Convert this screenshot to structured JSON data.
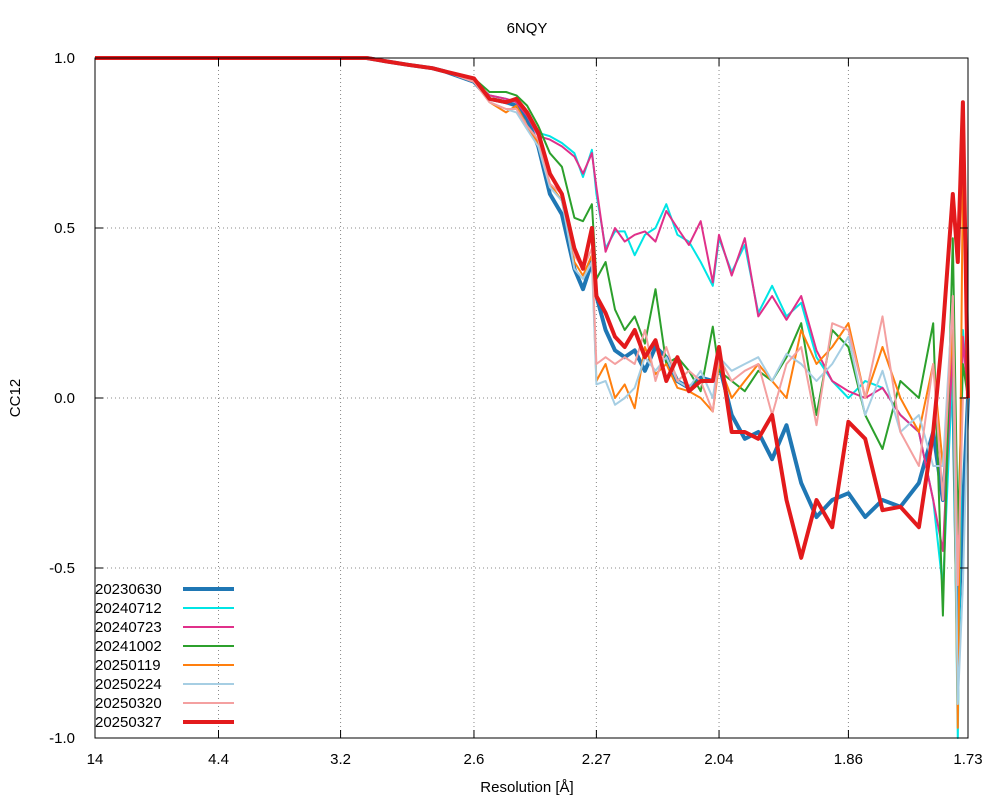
{
  "chart_data": {
    "type": "line",
    "title": "6NQY",
    "xlabel": "Resolution [Å]",
    "ylabel": "CC12",
    "x_scale": "reciprocal-squared",
    "xticks": [
      14,
      4.4,
      3.2,
      2.6,
      2.27,
      2.04,
      1.86,
      1.73
    ],
    "xtick_labels": [
      "14",
      "4.4",
      "3.2",
      "2.6",
      "2.27",
      "2.04",
      "1.86",
      "1.73"
    ],
    "yticks": [
      -1.0,
      -0.5,
      0.0,
      0.5,
      1.0
    ],
    "ytick_labels": [
      "-1.0",
      "-0.5",
      "0.0",
      "0.5",
      "1.0"
    ],
    "xlim": [
      14,
      1.73
    ],
    "ylim": [
      -1.0,
      1.0
    ],
    "grid": true,
    "legend_position": "bottom-left",
    "series": [
      {
        "name": "20230630",
        "color": "#1f77b4",
        "width": 4,
        "x": [
          14,
          9,
          6,
          4.8,
          4.4,
          3.9,
          3.5,
          3.2,
          3.05,
          2.95,
          2.85,
          2.75,
          2.7,
          2.6,
          2.55,
          2.5,
          2.47,
          2.44,
          2.41,
          2.38,
          2.35,
          2.32,
          2.3,
          2.28,
          2.27,
          2.25,
          2.23,
          2.21,
          2.19,
          2.17,
          2.15,
          2.13,
          2.11,
          2.09,
          2.07,
          2.05,
          2.04,
          2.02,
          2.0,
          1.98,
          1.96,
          1.94,
          1.92,
          1.9,
          1.88,
          1.86,
          1.84,
          1.82,
          1.8,
          1.78,
          1.765,
          1.755,
          1.745,
          1.74,
          1.735,
          1.73
        ],
        "y": [
          1.0,
          1.0,
          1.0,
          1.0,
          1.0,
          1.0,
          1.0,
          1.0,
          1.0,
          0.99,
          0.98,
          0.97,
          0.96,
          0.93,
          0.88,
          0.87,
          0.86,
          0.82,
          0.74,
          0.6,
          0.54,
          0.38,
          0.32,
          0.4,
          0.3,
          0.2,
          0.14,
          0.12,
          0.14,
          0.08,
          0.15,
          0.12,
          0.05,
          0.03,
          0.06,
          0.05,
          0.1,
          -0.05,
          -0.12,
          -0.1,
          -0.18,
          -0.08,
          -0.25,
          -0.35,
          -0.3,
          -0.28,
          -0.35,
          -0.3,
          -0.32,
          -0.25,
          -0.1,
          -0.3,
          0.1,
          -0.7,
          -0.33,
          0.0
        ]
      },
      {
        "name": "20240712",
        "color": "#00e5e5",
        "width": 2,
        "x": [
          14,
          9,
          6,
          4.8,
          4.4,
          3.9,
          3.5,
          3.2,
          3.05,
          2.95,
          2.85,
          2.75,
          2.7,
          2.6,
          2.55,
          2.5,
          2.47,
          2.44,
          2.41,
          2.38,
          2.35,
          2.32,
          2.3,
          2.28,
          2.27,
          2.25,
          2.23,
          2.21,
          2.19,
          2.17,
          2.15,
          2.13,
          2.11,
          2.09,
          2.07,
          2.05,
          2.04,
          2.02,
          2.0,
          1.98,
          1.96,
          1.94,
          1.92,
          1.9,
          1.88,
          1.86,
          1.84,
          1.82,
          1.8,
          1.78,
          1.765,
          1.755,
          1.745,
          1.74,
          1.735,
          1.73
        ],
        "y": [
          1.0,
          1.0,
          1.0,
          1.0,
          1.0,
          1.0,
          1.0,
          1.0,
          1.0,
          0.99,
          0.98,
          0.97,
          0.96,
          0.93,
          0.89,
          0.88,
          0.87,
          0.84,
          0.78,
          0.77,
          0.75,
          0.72,
          0.65,
          0.73,
          0.6,
          0.44,
          0.49,
          0.49,
          0.42,
          0.48,
          0.5,
          0.57,
          0.48,
          0.46,
          0.4,
          0.33,
          0.47,
          0.37,
          0.45,
          0.25,
          0.33,
          0.24,
          0.28,
          0.12,
          0.05,
          0.0,
          0.05,
          0.03,
          -0.05,
          -0.1,
          -0.3,
          -0.56,
          0.1,
          -1.0,
          0.2,
          0.0
        ]
      },
      {
        "name": "20240723",
        "color": "#e0308a",
        "width": 2,
        "x": [
          14,
          9,
          6,
          4.8,
          4.4,
          3.9,
          3.5,
          3.2,
          3.05,
          2.95,
          2.85,
          2.75,
          2.7,
          2.6,
          2.55,
          2.5,
          2.47,
          2.44,
          2.41,
          2.38,
          2.35,
          2.32,
          2.3,
          2.28,
          2.27,
          2.25,
          2.23,
          2.21,
          2.19,
          2.17,
          2.15,
          2.13,
          2.11,
          2.09,
          2.07,
          2.05,
          2.04,
          2.02,
          2.0,
          1.98,
          1.96,
          1.94,
          1.92,
          1.9,
          1.88,
          1.86,
          1.84,
          1.82,
          1.8,
          1.78,
          1.765,
          1.755,
          1.745,
          1.74,
          1.735,
          1.73
        ],
        "y": [
          1.0,
          1.0,
          1.0,
          1.0,
          1.0,
          1.0,
          1.0,
          1.0,
          1.0,
          0.99,
          0.98,
          0.97,
          0.96,
          0.93,
          0.89,
          0.88,
          0.87,
          0.83,
          0.77,
          0.76,
          0.74,
          0.71,
          0.66,
          0.72,
          0.62,
          0.43,
          0.5,
          0.46,
          0.48,
          0.49,
          0.46,
          0.55,
          0.5,
          0.45,
          0.52,
          0.34,
          0.48,
          0.36,
          0.47,
          0.24,
          0.3,
          0.23,
          0.3,
          0.14,
          0.05,
          0.02,
          0.0,
          0.03,
          -0.05,
          -0.1,
          -0.3,
          -0.45,
          0.15,
          -0.5,
          0.18,
          0.0
        ]
      },
      {
        "name": "20241002",
        "color": "#2ca02c",
        "width": 2,
        "x": [
          14,
          9,
          6,
          4.8,
          4.4,
          3.9,
          3.5,
          3.2,
          3.05,
          2.95,
          2.85,
          2.75,
          2.7,
          2.6,
          2.55,
          2.5,
          2.47,
          2.44,
          2.41,
          2.38,
          2.35,
          2.32,
          2.3,
          2.28,
          2.27,
          2.25,
          2.23,
          2.21,
          2.19,
          2.17,
          2.15,
          2.13,
          2.11,
          2.09,
          2.07,
          2.05,
          2.04,
          2.02,
          2.0,
          1.98,
          1.96,
          1.94,
          1.92,
          1.9,
          1.88,
          1.86,
          1.84,
          1.82,
          1.8,
          1.78,
          1.765,
          1.755,
          1.745,
          1.74,
          1.735,
          1.73
        ],
        "y": [
          1.0,
          1.0,
          1.0,
          1.0,
          1.0,
          1.0,
          1.0,
          1.0,
          1.0,
          0.99,
          0.98,
          0.97,
          0.96,
          0.94,
          0.9,
          0.9,
          0.89,
          0.86,
          0.8,
          0.72,
          0.68,
          0.53,
          0.52,
          0.57,
          0.35,
          0.4,
          0.26,
          0.2,
          0.24,
          0.16,
          0.32,
          0.1,
          0.12,
          0.08,
          0.02,
          0.21,
          0.08,
          0.05,
          0.02,
          0.08,
          0.05,
          0.12,
          0.22,
          -0.05,
          0.2,
          0.15,
          -0.05,
          -0.15,
          0.05,
          0.0,
          0.22,
          -0.64,
          0.47,
          -0.4,
          0.1,
          0.0
        ]
      },
      {
        "name": "20250119",
        "color": "#ff7f0e",
        "width": 2,
        "x": [
          14,
          9,
          6,
          4.8,
          4.4,
          3.9,
          3.5,
          3.2,
          3.05,
          2.95,
          2.85,
          2.75,
          2.7,
          2.6,
          2.55,
          2.5,
          2.47,
          2.44,
          2.41,
          2.38,
          2.35,
          2.32,
          2.3,
          2.28,
          2.27,
          2.25,
          2.23,
          2.21,
          2.19,
          2.17,
          2.15,
          2.13,
          2.11,
          2.09,
          2.07,
          2.05,
          2.04,
          2.02,
          2.0,
          1.98,
          1.96,
          1.94,
          1.92,
          1.9,
          1.88,
          1.86,
          1.84,
          1.82,
          1.8,
          1.78,
          1.765,
          1.755,
          1.745,
          1.74,
          1.735,
          1.73
        ],
        "y": [
          1.0,
          1.0,
          1.0,
          1.0,
          1.0,
          1.0,
          1.0,
          1.0,
          1.0,
          0.99,
          0.98,
          0.97,
          0.96,
          0.93,
          0.87,
          0.84,
          0.86,
          0.8,
          0.75,
          0.63,
          0.58,
          0.4,
          0.36,
          0.42,
          0.05,
          0.1,
          0.0,
          0.04,
          -0.03,
          0.15,
          0.07,
          0.1,
          0.03,
          0.02,
          0.0,
          -0.04,
          0.1,
          0.0,
          0.05,
          0.1,
          0.05,
          0.0,
          0.2,
          0.1,
          0.15,
          0.22,
          0.0,
          0.15,
          0.0,
          -0.1,
          0.1,
          -0.2,
          0.2,
          -0.97,
          0.67,
          0.0
        ]
      },
      {
        "name": "20250224",
        "color": "#a6cee3",
        "width": 2,
        "x": [
          14,
          9,
          6,
          4.8,
          4.4,
          3.9,
          3.5,
          3.2,
          3.05,
          2.95,
          2.85,
          2.75,
          2.7,
          2.6,
          2.55,
          2.5,
          2.47,
          2.44,
          2.41,
          2.38,
          2.35,
          2.32,
          2.3,
          2.28,
          2.27,
          2.25,
          2.23,
          2.21,
          2.19,
          2.17,
          2.15,
          2.13,
          2.11,
          2.09,
          2.07,
          2.05,
          2.04,
          2.02,
          2.0,
          1.98,
          1.96,
          1.94,
          1.92,
          1.9,
          1.88,
          1.86,
          1.84,
          1.82,
          1.8,
          1.78,
          1.765,
          1.755,
          1.745,
          1.74,
          1.735,
          1.73
        ],
        "y": [
          1.0,
          1.0,
          1.0,
          1.0,
          1.0,
          1.0,
          1.0,
          1.0,
          1.0,
          0.99,
          0.98,
          0.97,
          0.96,
          0.93,
          0.87,
          0.85,
          0.84,
          0.79,
          0.74,
          0.62,
          0.58,
          0.38,
          0.35,
          0.4,
          0.04,
          0.05,
          -0.02,
          0.0,
          0.03,
          0.12,
          0.08,
          0.12,
          0.05,
          0.03,
          0.08,
          0.0,
          0.12,
          0.08,
          0.1,
          0.12,
          0.05,
          0.13,
          0.1,
          0.05,
          0.1,
          0.18,
          -0.05,
          0.08,
          -0.1,
          -0.05,
          -0.2,
          -0.2,
          0.3,
          -0.9,
          -0.55,
          0.0
        ]
      },
      {
        "name": "20250320",
        "color": "#f4a0a0",
        "width": 2,
        "x": [
          14,
          9,
          6,
          4.8,
          4.4,
          3.9,
          3.5,
          3.2,
          3.05,
          2.95,
          2.85,
          2.75,
          2.7,
          2.6,
          2.55,
          2.5,
          2.47,
          2.44,
          2.41,
          2.38,
          2.35,
          2.32,
          2.3,
          2.28,
          2.27,
          2.25,
          2.23,
          2.21,
          2.19,
          2.17,
          2.15,
          2.13,
          2.11,
          2.09,
          2.07,
          2.05,
          2.04,
          2.02,
          2.0,
          1.98,
          1.96,
          1.94,
          1.92,
          1.9,
          1.88,
          1.86,
          1.84,
          1.82,
          1.8,
          1.78,
          1.765,
          1.755,
          1.745,
          1.74,
          1.735,
          1.73
        ],
        "y": [
          1.0,
          1.0,
          1.0,
          1.0,
          1.0,
          1.0,
          1.0,
          1.0,
          1.0,
          0.99,
          0.98,
          0.97,
          0.96,
          0.93,
          0.87,
          0.85,
          0.85,
          0.8,
          0.76,
          0.63,
          0.6,
          0.42,
          0.38,
          0.44,
          0.1,
          0.12,
          0.1,
          0.12,
          0.1,
          0.2,
          0.05,
          0.15,
          0.05,
          0.08,
          0.05,
          -0.04,
          0.12,
          0.05,
          0.08,
          0.1,
          -0.05,
          0.1,
          0.15,
          -0.08,
          0.22,
          0.2,
          0.0,
          0.24,
          -0.1,
          -0.2,
          0.1,
          -0.3,
          0.3,
          -0.55,
          0.0,
          0.0
        ]
      },
      {
        "name": "20250327",
        "color": "#e31a1c",
        "width": 4,
        "x": [
          14,
          9,
          6,
          4.8,
          4.4,
          3.9,
          3.5,
          3.2,
          3.05,
          2.95,
          2.85,
          2.75,
          2.7,
          2.6,
          2.55,
          2.5,
          2.47,
          2.44,
          2.41,
          2.38,
          2.35,
          2.32,
          2.3,
          2.28,
          2.27,
          2.25,
          2.23,
          2.21,
          2.19,
          2.17,
          2.15,
          2.13,
          2.11,
          2.09,
          2.07,
          2.05,
          2.04,
          2.02,
          2.0,
          1.98,
          1.96,
          1.94,
          1.92,
          1.9,
          1.88,
          1.86,
          1.84,
          1.82,
          1.8,
          1.78,
          1.765,
          1.755,
          1.745,
          1.74,
          1.735,
          1.73
        ],
        "y": [
          1.0,
          1.0,
          1.0,
          1.0,
          1.0,
          1.0,
          1.0,
          1.0,
          1.0,
          0.99,
          0.98,
          0.97,
          0.96,
          0.94,
          0.88,
          0.87,
          0.88,
          0.84,
          0.78,
          0.66,
          0.6,
          0.44,
          0.38,
          0.5,
          0.3,
          0.25,
          0.18,
          0.15,
          0.2,
          0.12,
          0.17,
          0.05,
          0.12,
          0.02,
          0.05,
          0.05,
          0.15,
          -0.1,
          -0.1,
          -0.12,
          -0.05,
          -0.3,
          -0.47,
          -0.3,
          -0.38,
          -0.07,
          -0.12,
          -0.33,
          -0.32,
          -0.38,
          -0.1,
          0.2,
          0.6,
          0.4,
          0.87,
          0.0
        ]
      }
    ]
  }
}
